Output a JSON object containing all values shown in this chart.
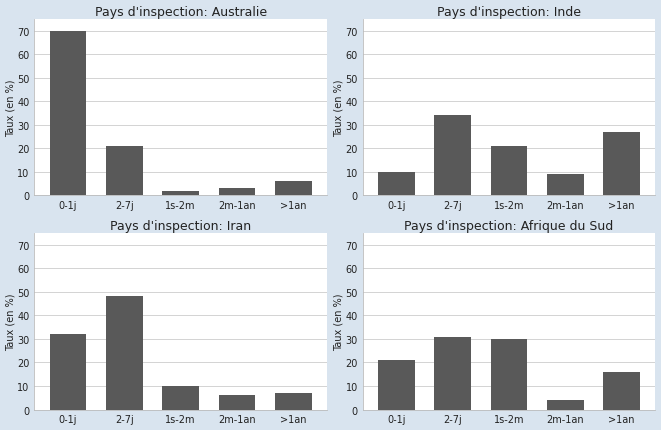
{
  "subplots": [
    {
      "title": "Pays d'inspection: Australie",
      "values": [
        70,
        21,
        2,
        3,
        6
      ]
    },
    {
      "title": "Pays d'inspection: Inde",
      "values": [
        10,
        34,
        21,
        9,
        27
      ]
    },
    {
      "title": "Pays d'inspection: Iran",
      "values": [
        32,
        48,
        10,
        6,
        7
      ]
    },
    {
      "title": "Pays d'inspection: Afrique du Sud",
      "values": [
        21,
        31,
        30,
        4,
        16
      ]
    }
  ],
  "categories": [
    "0-1j",
    "2-7j",
    "1s-2m",
    "2m-1an",
    ">1an"
  ],
  "ylabel": "Taux (en %)",
  "bar_color": "#595959",
  "bar_edge_color": "#595959",
  "ylim": [
    0,
    75
  ],
  "yticks": [
    0,
    10,
    20,
    30,
    40,
    50,
    60,
    70
  ],
  "background_color": "#d9e4ef",
  "plot_background_color": "#ffffff",
  "title_fontsize": 9,
  "axis_fontsize": 7,
  "tick_fontsize": 7,
  "bar_width": 0.65
}
